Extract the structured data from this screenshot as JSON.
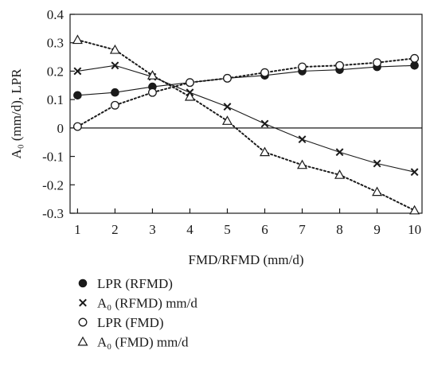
{
  "chart_data": {
    "type": "line",
    "xlabel": "FMD/RFMD (mm/d)",
    "ylabel": "A₀ (mm/d), LPR",
    "xlim": [
      0.8,
      10.2
    ],
    "ylim": [
      -0.3,
      0.4
    ],
    "x_ticks": [
      "1",
      "2",
      "3",
      "4",
      "5",
      "6",
      "7",
      "8",
      "9",
      "10"
    ],
    "y_ticks": [
      "0.4",
      "0.3",
      "0.2",
      "0.1",
      "0",
      "-0.1",
      "-0.2",
      "-0.3"
    ],
    "x": [
      1,
      2,
      3,
      4,
      5,
      6,
      7,
      8,
      9,
      10
    ],
    "zero_line": true,
    "grid": false,
    "legend_position": "bottom-left, below plot",
    "series": [
      {
        "name": "LPR (RFMD)",
        "marker": "filled-circle",
        "line": "solid",
        "values": [
          0.115,
          0.125,
          0.145,
          0.16,
          0.175,
          0.185,
          0.2,
          0.205,
          0.215,
          0.22
        ]
      },
      {
        "name": "A₀ (RFMD) mm/d",
        "marker": "x",
        "line": "solid",
        "values": [
          0.2,
          0.22,
          0.18,
          0.125,
          0.075,
          0.015,
          -0.04,
          -0.085,
          -0.125,
          -0.155
        ]
      },
      {
        "name": "LPR (FMD)",
        "marker": "open-circle",
        "line": "dotted",
        "values": [
          0.005,
          0.08,
          0.125,
          0.16,
          0.175,
          0.195,
          0.215,
          0.22,
          0.23,
          0.245
        ]
      },
      {
        "name": "A₀ (FMD) mm/d",
        "marker": "open-triangle",
        "line": "dotted",
        "values": [
          0.31,
          0.275,
          0.185,
          0.11,
          0.025,
          -0.085,
          -0.13,
          -0.165,
          -0.225,
          -0.29
        ]
      }
    ]
  },
  "colors": {
    "ink": "#1a1a1a",
    "background": "#ffffff"
  }
}
